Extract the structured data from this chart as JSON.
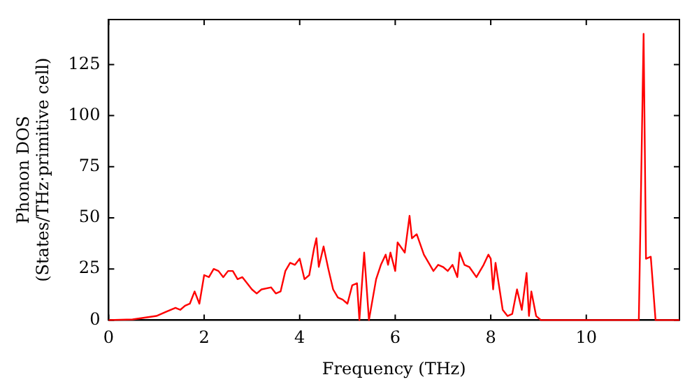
{
  "chart_data": {
    "type": "line",
    "xlabel": "Frequency (THz)",
    "ylabel": "Phonon DOS\n(States/THz·primitive cell)",
    "xlim": [
      0,
      11.95
    ],
    "ylim": [
      0,
      147
    ],
    "xticks": [
      0,
      2,
      4,
      6,
      8,
      10
    ],
    "yticks": [
      0,
      25,
      50,
      75,
      100,
      125
    ],
    "grid": false,
    "legend": false,
    "marker": "none",
    "line_style": "solid",
    "series": [
      {
        "color": "#ff0000",
        "x": [
          0,
          0.5,
          1.0,
          1.2,
          1.4,
          1.5,
          1.6,
          1.7,
          1.8,
          1.9,
          2.0,
          2.1,
          2.2,
          2.3,
          2.4,
          2.5,
          2.6,
          2.7,
          2.8,
          2.9,
          3.0,
          3.1,
          3.2,
          3.4,
          3.5,
          3.6,
          3.7,
          3.8,
          3.9,
          4.0,
          4.1,
          4.2,
          4.3,
          4.35,
          4.4,
          4.5,
          4.6,
          4.7,
          4.8,
          4.9,
          5.0,
          5.1,
          5.2,
          5.25,
          5.35,
          5.45,
          5.6,
          5.7,
          5.8,
          5.85,
          5.9,
          6.0,
          6.05,
          6.2,
          6.3,
          6.35,
          6.45,
          6.6,
          6.8,
          6.9,
          7.0,
          7.1,
          7.2,
          7.3,
          7.35,
          7.45,
          7.55,
          7.7,
          7.85,
          7.95,
          8.0,
          8.05,
          8.1,
          8.25,
          8.35,
          8.45,
          8.55,
          8.65,
          8.75,
          8.8,
          8.85,
          8.95,
          9.05,
          10.0,
          11.1,
          11.2,
          11.25,
          11.35,
          11.45,
          11.95
        ],
        "values": [
          0,
          0.3,
          2,
          4,
          6,
          5,
          7,
          8,
          14,
          8,
          22,
          21,
          25,
          24,
          21,
          24,
          24,
          20,
          21,
          18,
          15,
          13,
          15,
          16,
          13,
          14,
          24,
          28,
          27,
          30,
          20,
          22,
          35,
          40,
          26,
          36,
          25,
          15,
          11,
          10,
          8,
          17,
          18,
          0,
          33,
          0,
          20,
          27,
          32,
          27,
          33,
          24,
          38,
          33,
          51,
          40,
          42,
          32,
          24,
          27,
          26,
          24,
          27,
          21,
          33,
          27,
          26,
          21,
          27,
          32,
          30,
          15,
          28,
          5,
          2,
          3,
          15,
          5,
          23,
          2,
          14,
          2,
          0,
          0,
          0,
          140,
          30,
          31,
          0,
          0
        ]
      }
    ]
  }
}
